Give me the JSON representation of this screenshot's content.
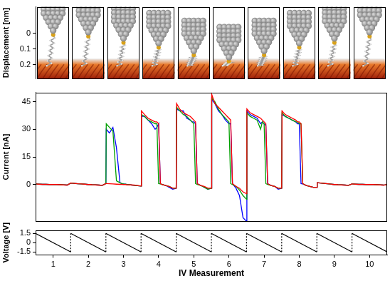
{
  "chart_data": [
    {
      "type": "scatter",
      "marker": "tip",
      "y_label": "Displacement [nm]",
      "color": "#808080",
      "x": [
        1,
        2,
        3,
        4,
        5,
        6,
        7,
        8,
        9,
        10
      ],
      "values": [
        0,
        0.01,
        0.05,
        0.08,
        0.13,
        0.17,
        0.13,
        0.08,
        0.05,
        0.01
      ],
      "xlim": [
        0.5,
        10.5
      ],
      "ylim": [
        0.29,
        -0.17
      ],
      "yticks": [
        0,
        0.1,
        0.2
      ],
      "grid": false,
      "tick_labels": "y"
    },
    {
      "type": "line",
      "y_label": "Current [nA]",
      "x": [
        0.5,
        0.51,
        0.6,
        0.7,
        0.8,
        0.9,
        0.95,
        1,
        1.05,
        1.1,
        1.2,
        1.3,
        1.4,
        1.5,
        1.51,
        1.6,
        1.7,
        1.8,
        1.9,
        1.95,
        2,
        2.05,
        2.1,
        2.2,
        2.3,
        2.4,
        2.5,
        2.51,
        2.6,
        2.7,
        2.8,
        2.9,
        2.95,
        3,
        3.05,
        3.1,
        3.2,
        3.3,
        3.4,
        3.5,
        3.51,
        3.6,
        3.7,
        3.8,
        3.9,
        3.95,
        4,
        4.05,
        4.1,
        4.2,
        4.3,
        4.4,
        4.5,
        4.51,
        4.6,
        4.7,
        4.8,
        4.9,
        4.95,
        5,
        5.05,
        5.1,
        5.2,
        5.3,
        5.4,
        5.5,
        5.51,
        5.6,
        5.7,
        5.8,
        5.9,
        5.95,
        6,
        6.05,
        6.1,
        6.2,
        6.3,
        6.4,
        6.5,
        6.51,
        6.6,
        6.7,
        6.8,
        6.9,
        6.95,
        7,
        7.05,
        7.1,
        7.2,
        7.3,
        7.4,
        7.5,
        7.51,
        7.6,
        7.7,
        7.8,
        7.9,
        7.95,
        8,
        8.05,
        8.1,
        8.2,
        8.3,
        8.4,
        8.5,
        8.51,
        8.6,
        8.7,
        8.8,
        8.9,
        8.95,
        9,
        9.05,
        9.1,
        9.2,
        9.3,
        9.4,
        9.5,
        9.51,
        9.6,
        9.7,
        9.8,
        9.9,
        9.95,
        10,
        10.05,
        10.1,
        10.2,
        10.3,
        10.4,
        10.5
      ],
      "series": [
        {
          "color": "#ff0000",
          "values": [
            0.3,
            0.3,
            0.2,
            0.1,
            0.1,
            0,
            0,
            0,
            0,
            0,
            -0.1,
            -0.2,
            -0.3,
            0.8,
            0.8,
            0.6,
            0.4,
            0.3,
            0.2,
            0.1,
            0,
            0,
            -0.1,
            -0.2,
            -0.3,
            -0.4,
            0.5,
            0.5,
            0.4,
            0.3,
            0.2,
            0.1,
            0.1,
            0,
            0,
            -0.1,
            -0.2,
            -0.3,
            -0.5,
            -0.8,
            40,
            38,
            36,
            35,
            34,
            34,
            33,
            0.5,
            0,
            -0.5,
            -1,
            -2,
            -2,
            44,
            41,
            39,
            38,
            37,
            36,
            35,
            34,
            0.5,
            -0.5,
            -1,
            -2,
            -2,
            49,
            44,
            42,
            40,
            38,
            37,
            36,
            35,
            0.5,
            -1,
            -2,
            -4,
            -5,
            41,
            39,
            38,
            37,
            36,
            35,
            34,
            33,
            0.5,
            -0.5,
            -1,
            -2,
            -2,
            40,
            38,
            37,
            36,
            35,
            34,
            34,
            33,
            0.5,
            -0.5,
            -1,
            -1.5,
            -1.5,
            1,
            0.8,
            0.6,
            0.4,
            0.2,
            0.1,
            0,
            0,
            -0.1,
            -0.2,
            -0.3,
            -0.4,
            0.3,
            0.3,
            0.2,
            0.1,
            0.1,
            0,
            0,
            0,
            0,
            0,
            -0.1,
            -0.2,
            -0.3,
            0
          ]
        },
        {
          "color": "#00a000",
          "values": [
            0.3,
            0.3,
            0.2,
            0.1,
            0.1,
            0,
            0,
            0,
            0,
            0,
            -0.1,
            -0.2,
            -0.3,
            0.8,
            0.8,
            0.6,
            0.4,
            0.3,
            0.2,
            0.1,
            0,
            0,
            -0.1,
            -0.2,
            -0.3,
            -0.4,
            0.5,
            33,
            31,
            29,
            2,
            1,
            0.5,
            0.3,
            0.2,
            0,
            -0.2,
            -0.4,
            -0.6,
            -0.8,
            38,
            37,
            35,
            34,
            33,
            33,
            0.5,
            0.3,
            0,
            -0.5,
            -1,
            -2,
            -2,
            42,
            40,
            38,
            37,
            35,
            34,
            33,
            0.5,
            0,
            -0.5,
            -1.5,
            -2.5,
            -2,
            47,
            45,
            41,
            38,
            36,
            35,
            34,
            0.5,
            0,
            -1,
            -3,
            -6,
            -8,
            39,
            37,
            36,
            35,
            30,
            34,
            33,
            0.5,
            0,
            -0.5,
            -1,
            -2,
            -2,
            39,
            37,
            36,
            35,
            34,
            34,
            33,
            33,
            0.5,
            -0.5,
            -1,
            -1.5,
            -1.5,
            1,
            0.8,
            0.6,
            0.4,
            0.2,
            0.1,
            0,
            0,
            -0.1,
            -0.2,
            -0.3,
            -0.4,
            0.3,
            0.3,
            0.2,
            0.1,
            0.1,
            0,
            0,
            0,
            0,
            0,
            -0.1,
            -0.2,
            -0.3,
            0
          ]
        },
        {
          "color": "#0000ff",
          "values": [
            0.3,
            0.3,
            0.2,
            0.1,
            0.1,
            0,
            0,
            0,
            0,
            0,
            -0.1,
            -0.2,
            -0.3,
            0.8,
            0.8,
            0.6,
            0.4,
            0.3,
            0.2,
            0.1,
            0,
            0,
            -0.1,
            -0.2,
            -0.3,
            -0.4,
            0.5,
            30,
            28,
            31,
            20,
            1,
            0.5,
            0.3,
            0.2,
            0,
            -0.2,
            -0.4,
            -0.6,
            -0.8,
            37,
            37,
            35,
            33,
            30,
            31,
            33,
            0.5,
            0,
            -0.5,
            -1.5,
            -2.5,
            -2,
            41,
            40,
            40,
            36,
            35,
            34,
            34,
            33,
            0.5,
            -0.5,
            -1.5,
            -2.5,
            -2,
            46,
            44,
            40,
            38,
            35,
            34,
            33,
            33,
            0.5,
            -2,
            -6,
            -18,
            -20,
            40,
            38,
            37,
            36,
            33,
            34,
            33,
            32,
            0.5,
            -0.5,
            -1,
            -2.5,
            -2,
            38,
            37,
            36,
            35,
            34,
            33,
            33,
            0.5,
            0.3,
            -0.5,
            -1,
            -1.5,
            -1.5,
            1,
            0.8,
            0.6,
            0.4,
            0.2,
            0.1,
            0,
            0,
            -0.1,
            -0.2,
            -0.3,
            -0.4,
            0.3,
            0.3,
            0.2,
            0.1,
            0.1,
            0,
            0,
            0,
            0,
            0,
            -0.1,
            -0.2,
            -0.3,
            0
          ]
        }
      ],
      "xlim": [
        0.5,
        10.5
      ],
      "ylim": [
        -20,
        50
      ],
      "yticks": [
        0,
        15,
        30,
        45
      ],
      "grid": false,
      "tick_labels": "y"
    },
    {
      "type": "line",
      "x_label": "IV Measurement",
      "y_label": "Voltage [V]",
      "color": "#000000",
      "x": [
        0.5,
        1.5,
        1.5,
        2.5,
        2.5,
        3.5,
        3.5,
        4.5,
        4.5,
        5.5,
        5.5,
        6.5,
        6.5,
        7.5,
        7.5,
        8.5,
        8.5,
        9.5,
        9.5,
        10.5
      ],
      "values": [
        1.5,
        -1.5,
        1.5,
        -1.5,
        1.5,
        -1.5,
        1.5,
        -1.5,
        1.5,
        -1.5,
        1.5,
        -1.5,
        1.5,
        -1.5,
        1.5,
        -1.5,
        1.5,
        -1.5,
        1.5,
        -1.5
      ],
      "xlim": [
        0.5,
        10.5
      ],
      "xticks": [
        1,
        2,
        3,
        4,
        5,
        6,
        7,
        8,
        9,
        10
      ],
      "ylim": [
        -2,
        2
      ],
      "yticks": [
        -1.5,
        0,
        1.5
      ],
      "grid": false
    }
  ]
}
